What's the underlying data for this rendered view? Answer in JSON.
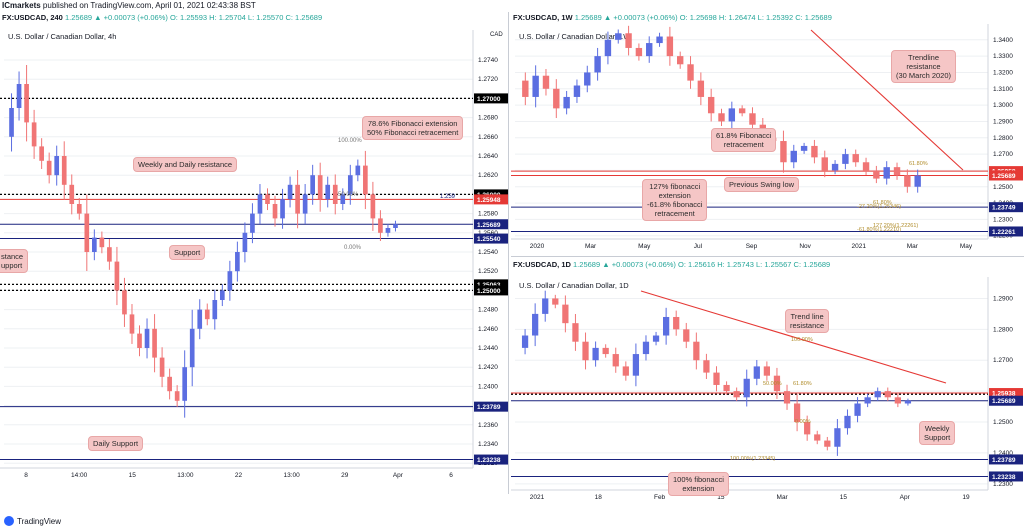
{
  "header": {
    "brand": "ICmarkets",
    "published": "published on TradingView.com, April 01, 2021 02:43:38 BST"
  },
  "panels": {
    "four_hour": {
      "symbol_line": "FX:USDCAD, 240",
      "ohlc": "1.25689 ▲ +0.00073 (+0.06%) O: 1.25593 H: 1.25704 L: 1.25570 C: 1.25689",
      "subtitle": "U.S. Dollar / Canadian Dollar, 4h",
      "currency": "CAD",
      "annotations": {
        "fib_ext": "78.6% Fibonacci extension\n50% Fibonacci retracement",
        "weekly_daily_resistance": "Weekly and Daily resistance",
        "support": "Support",
        "resistance_support_partial": "stance\nupport",
        "daily_support": "Daily Support"
      },
      "fib_labels": {
        "top": "100.00%",
        "mid": "50.00%",
        "bottom": "0.00%",
        "small_price": "1.259"
      }
    },
    "weekly": {
      "symbol_line": "FX:USDCAD, 1W",
      "ohlc": "1.25689 ▲ +0.00073 (+0.06%) O: 1.25698 H: 1.26474 L: 1.25392 C: 1.25689",
      "subtitle": "U.S. Dollar / Canadian Dollar, 1W",
      "annotations": {
        "trendline": "Trendline\nresistance\n(30 March 2020)",
        "fib618": "61.8% Fibonacci\nretracement",
        "fib127": "127% fibonacci\nextension\n-61.8% fibonacci\nretracement",
        "swing_low": "Previous Swing low"
      },
      "fib_labels": {
        "a": "61.80%",
        "b": "-27.20%(1.25346)",
        "c": "61.80%",
        "d": "127.20%(1.22261)",
        "e": "-61.80%(1.22210)",
        "f": "61.80%"
      }
    },
    "daily": {
      "symbol_line": "FX:USDCAD, 1D",
      "ohlc": "1.25689 ▲ +0.00073 (+0.06%) O: 1.25616 H: 1.25743 L: 1.25567 C: 1.25689",
      "subtitle": "U.S. Dollar / Canadian Dollar, 1D",
      "annotations": {
        "trendline": "Trend line\nresistance",
        "weekly_support": "Weekly\nSupport",
        "fib100": "100% fibonacci\nextension"
      },
      "fib_labels": {
        "a": "100.00%",
        "b": "0.00%",
        "c": "100.00%(1.23345)",
        "d": "61.80%",
        "e": "50.00%"
      }
    }
  },
  "footer": {
    "brand": "TradingView"
  },
  "colors": {
    "bull": "#5b6ee1",
    "bear": "#f07575",
    "red_line": "#e53935",
    "blue_line": "#1a237e",
    "black_dotted": "#000000",
    "grid": "#eef0f3"
  },
  "chart_data": [
    {
      "panel": "four_hour",
      "type": "line",
      "title": "U.S. Dollar / Canadian Dollar, 4h",
      "xlabel": "",
      "ylabel": "",
      "ylim": [
        1.2315,
        1.2765
      ],
      "y_ticks": [
        1.232,
        1.234,
        1.236,
        1.238,
        1.24,
        1.242,
        1.244,
        1.246,
        1.248,
        1.25,
        1.252,
        1.254,
        1.256,
        1.258,
        1.26,
        1.262,
        1.264,
        1.266,
        1.268,
        1.27,
        1.272,
        1.274
      ],
      "x_tick_labels": [
        "8",
        "14:00",
        "15",
        "13:00",
        "22",
        "13:00",
        "29",
        "Apr",
        "6"
      ],
      "price_tags": [
        {
          "value": 1.27,
          "label": "1.27000",
          "color": "#000000"
        },
        {
          "value": 1.26,
          "label": "1.26000",
          "color": "#000000"
        },
        {
          "value": 1.25948,
          "label": "1.25948",
          "color": "#e53935"
        },
        {
          "value": 1.25689,
          "label": "1.25689",
          "color": "#1a237e"
        },
        {
          "value": 1.2554,
          "label": "1.25540",
          "color": "#1a237e"
        },
        {
          "value": 1.25063,
          "label": "1.25063",
          "color": "#000000"
        },
        {
          "value": 1.25,
          "label": "1.25000",
          "color": "#000000"
        },
        {
          "value": 1.23789,
          "label": "1.23789",
          "color": "#1a237e"
        },
        {
          "value": 1.23238,
          "label": "1.23238",
          "color": "#1a237e"
        }
      ],
      "close_path": [
        1.266,
        1.269,
        1.2715,
        1.2675,
        1.265,
        1.2635,
        1.262,
        1.264,
        1.261,
        1.259,
        1.258,
        1.254,
        1.2555,
        1.2545,
        1.253,
        1.25,
        1.2475,
        1.2455,
        1.244,
        1.246,
        1.243,
        1.241,
        1.2395,
        1.2385,
        1.242,
        1.246,
        1.248,
        1.247,
        1.249,
        1.25,
        1.252,
        1.254,
        1.256,
        1.258,
        1.26,
        1.259,
        1.2575,
        1.2595,
        1.261,
        1.258,
        1.26,
        1.262,
        1.2595,
        1.261,
        1.259,
        1.26,
        1.262,
        1.263,
        1.26,
        1.2575,
        1.256,
        1.2565,
        1.2569
      ]
    },
    {
      "panel": "weekly",
      "type": "line",
      "title": "U.S. Dollar / Canadian Dollar, 1W",
      "ylim": [
        1.218,
        1.346
      ],
      "y_ticks": [
        1.22,
        1.23,
        1.24,
        1.25,
        1.26,
        1.27,
        1.28,
        1.29,
        1.3,
        1.31,
        1.32,
        1.33,
        1.34
      ],
      "x_tick_labels": [
        "2020",
        "Mar",
        "May",
        "Jul",
        "Sep",
        "Nov",
        "2021",
        "Mar",
        "May"
      ],
      "price_tags": [
        {
          "value": 1.25958,
          "label": "1.25958",
          "color": "#e53935"
        },
        {
          "value": 1.25689,
          "label": "1.25689",
          "color": "#e53935"
        },
        {
          "value": 1.23749,
          "label": "1.23749",
          "color": "#1a237e"
        },
        {
          "value": 1.22261,
          "label": "1.22261",
          "color": "#1a237e"
        }
      ],
      "close_path": [
        1.315,
        1.305,
        1.318,
        1.31,
        1.298,
        1.305,
        1.312,
        1.32,
        1.33,
        1.34,
        1.344,
        1.335,
        1.33,
        1.338,
        1.342,
        1.33,
        1.325,
        1.315,
        1.305,
        1.295,
        1.29,
        1.298,
        1.295,
        1.288,
        1.28,
        1.278,
        1.265,
        1.272,
        1.275,
        1.268,
        1.26,
        1.264,
        1.27,
        1.265,
        1.26,
        1.255,
        1.262,
        1.257,
        1.25,
        1.2569
      ]
    },
    {
      "panel": "daily",
      "type": "line",
      "title": "U.S. Dollar / Canadian Dollar, 1D",
      "ylim": [
        1.228,
        1.295
      ],
      "y_ticks": [
        1.23,
        1.24,
        1.25,
        1.26,
        1.27,
        1.28,
        1.29
      ],
      "x_tick_labels": [
        "2021",
        "18",
        "Feb",
        "15",
        "Mar",
        "15",
        "Apr",
        "19"
      ],
      "price_tags": [
        {
          "value": 1.259,
          "label": "1.25900",
          "color": "#000000"
        },
        {
          "value": 1.25938,
          "label": "1.25938",
          "color": "#e53935"
        },
        {
          "value": 1.25689,
          "label": "1.25689",
          "color": "#1a237e"
        },
        {
          "value": 1.23789,
          "label": "1.23789",
          "color": "#1a237e"
        },
        {
          "value": 1.23238,
          "label": "1.23238",
          "color": "#1a237e"
        }
      ],
      "close_path": [
        1.274,
        1.278,
        1.285,
        1.29,
        1.288,
        1.282,
        1.276,
        1.27,
        1.274,
        1.272,
        1.268,
        1.265,
        1.272,
        1.276,
        1.278,
        1.284,
        1.28,
        1.276,
        1.27,
        1.266,
        1.262,
        1.26,
        1.258,
        1.264,
        1.268,
        1.265,
        1.26,
        1.256,
        1.25,
        1.246,
        1.244,
        1.242,
        1.248,
        1.252,
        1.256,
        1.258,
        1.26,
        1.258,
        1.256,
        1.2569
      ]
    }
  ]
}
